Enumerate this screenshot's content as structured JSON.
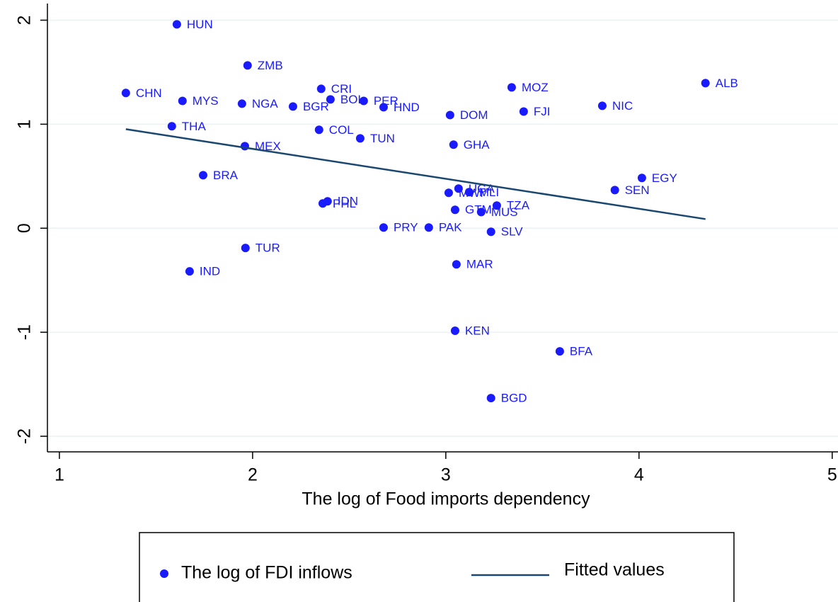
{
  "chart_data": {
    "type": "scatter",
    "x_label": "The log of Food imports dependency",
    "xlim": [
      0.938,
      5.03
    ],
    "ylim": [
      -2.15,
      2.16
    ],
    "xticks": [
      1,
      2,
      3,
      4,
      5
    ],
    "yticks": [
      -2,
      -1,
      0,
      1,
      2
    ],
    "grid": true,
    "series": [
      {
        "name": "The log of FDI inflows",
        "style": "markers",
        "color": "#1a1aff",
        "labels": [
          "HUN",
          "ZMB",
          "CHN",
          "MYS",
          "NGA",
          "BGR",
          "CRI",
          "BOL",
          "PER",
          "HND",
          "MOZ",
          "DOM",
          "FJI",
          "NIC",
          "ALB",
          "THA",
          "COL",
          "TUN",
          "MEX",
          "GHA",
          "BRA",
          "EGY",
          "SEN",
          "PHL",
          "IDN",
          "MWI",
          "UGA",
          "MLI",
          "GTM",
          "MUS",
          "TZA",
          "PRY",
          "PAK",
          "SLV",
          "TUR",
          "IND",
          "MAR",
          "KEN",
          "BFA",
          "BGD"
        ],
        "x": [
          1.608,
          1.974,
          1.344,
          1.637,
          1.945,
          2.209,
          2.355,
          2.403,
          2.575,
          2.678,
          3.341,
          3.022,
          3.403,
          3.81,
          4.344,
          1.582,
          2.344,
          2.557,
          1.96,
          3.04,
          1.744,
          4.015,
          3.875,
          2.363,
          2.388,
          3.015,
          3.066,
          3.121,
          3.048,
          3.183,
          3.264,
          2.678,
          2.912,
          3.234,
          1.963,
          1.674,
          3.055,
          3.048,
          3.59,
          3.234
        ],
        "values": [
          1.96,
          1.565,
          1.3,
          1.224,
          1.197,
          1.17,
          1.34,
          1.238,
          1.224,
          1.163,
          1.354,
          1.088,
          1.122,
          1.177,
          1.395,
          0.98,
          0.946,
          0.864,
          0.789,
          0.803,
          0.51,
          0.483,
          0.367,
          0.238,
          0.259,
          0.34,
          0.381,
          0.347,
          0.177,
          0.156,
          0.218,
          0.007,
          0.007,
          -0.034,
          -0.19,
          -0.415,
          -0.347,
          -0.986,
          -1.184,
          -1.633
        ]
      },
      {
        "name": "Fitted values",
        "style": "line",
        "color": "#1a476f",
        "x": [
          1.344,
          4.344
        ],
        "values": [
          0.952,
          0.088
        ]
      }
    ]
  }
}
